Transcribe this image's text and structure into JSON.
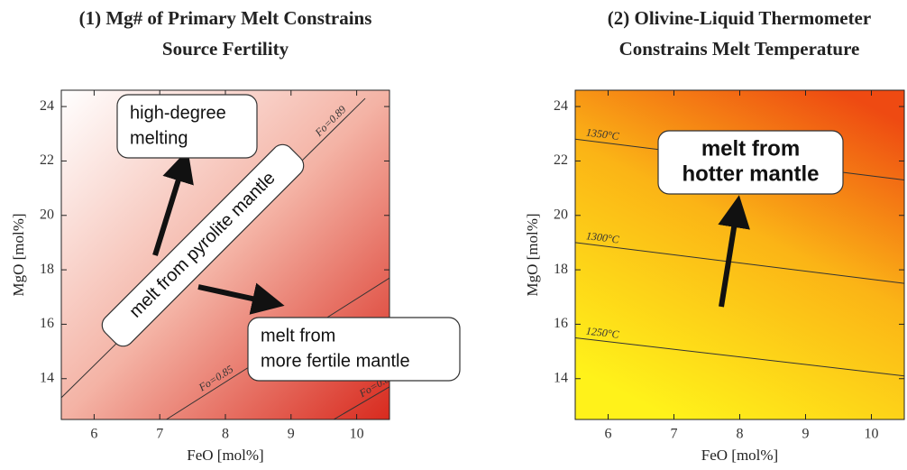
{
  "chart_data": [
    {
      "type": "line",
      "title": [
        "(1) Mg# of Primary Melt Constrains",
        "Source Fertility"
      ],
      "xlabel": "FeO [mol%]",
      "ylabel": "MgO [mol%]",
      "xlim": [
        5.5,
        10.5
      ],
      "ylim": [
        12.5,
        24.6
      ],
      "xticks": [
        6,
        7,
        8,
        9,
        10
      ],
      "yticks": [
        14,
        16,
        18,
        20,
        22,
        24
      ],
      "series": [
        {
          "name": "Fo=0.89",
          "color": "#333333",
          "x": [
            5.5,
            10.13
          ],
          "values": [
            13.3,
            24.3
          ]
        },
        {
          "name": "Fo=0.85",
          "color": "#333333",
          "x": [
            7.1,
            10.5
          ],
          "values": [
            12.5,
            17.7
          ]
        },
        {
          "name": "Fo=0.83",
          "color": "#333333",
          "x": [
            9.65,
            10.5
          ],
          "values": [
            12.5,
            13.7
          ]
        }
      ],
      "annotations": [
        [
          "high-degree",
          "melting"
        ],
        [
          "melt from pyrolite mantle"
        ],
        [
          "melt from",
          "more fertile mantle"
        ]
      ]
    },
    {
      "type": "line",
      "title": [
        "(2) Olivine-Liquid Thermometer",
        "Constrains Melt Temperature"
      ],
      "xlabel": "FeO [mol%]",
      "ylabel": "MgO [mol%]",
      "xlim": [
        5.5,
        10.5
      ],
      "ylim": [
        12.5,
        24.6
      ],
      "xticks": [
        6,
        7,
        8,
        9,
        10
      ],
      "yticks": [
        14,
        16,
        18,
        20,
        22,
        24
      ],
      "series": [
        {
          "name": "1350°C",
          "color": "#333333",
          "x": [
            5.5,
            10.5
          ],
          "values": [
            22.8,
            21.3
          ]
        },
        {
          "name": "1300°C",
          "color": "#333333",
          "x": [
            5.5,
            10.5
          ],
          "values": [
            19.0,
            17.5
          ]
        },
        {
          "name": "1250°C",
          "color": "#333333",
          "x": [
            5.5,
            10.5
          ],
          "values": [
            15.5,
            14.1
          ]
        }
      ],
      "annotations": [
        [
          "melt from",
          "hotter mantle"
        ]
      ]
    }
  ]
}
